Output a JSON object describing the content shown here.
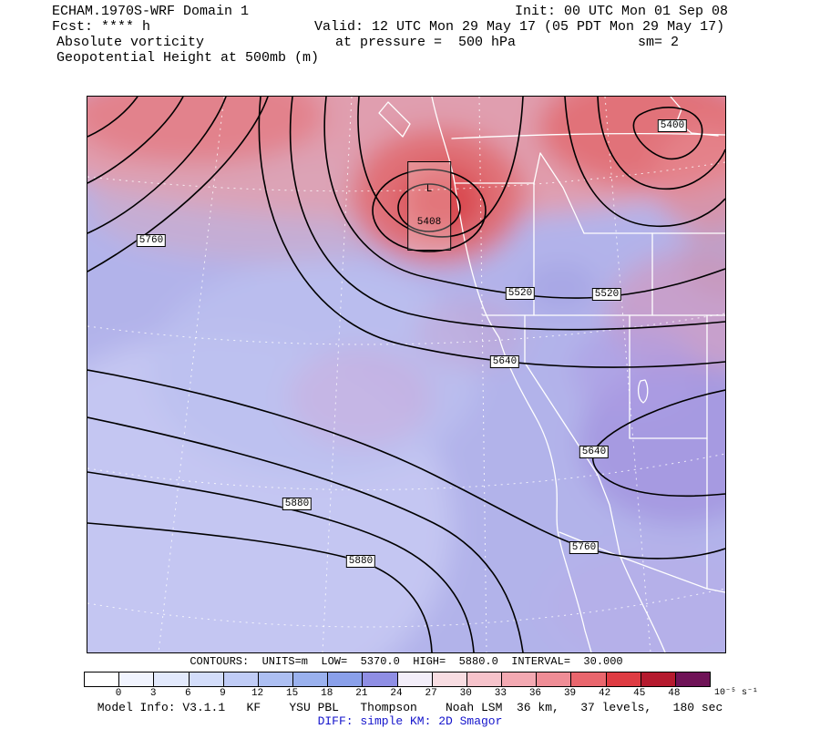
{
  "header": {
    "line1_left": "ECHAM.1970S-WRF Domain 1",
    "line1_right": "Init: 00 UTC Mon 01 Sep 08",
    "line2_left": "Fcst: **** h",
    "line2_mid": "Valid: 12 UTC Mon 29 May 17 (05 PDT Mon 29 May 17)",
    "line3_left": "Absolute vorticity",
    "line3_mid": "at pressure =  500 hPa",
    "line3_right": "sm= 2",
    "line4_left": "Geopotential Height at 500mb (m)"
  },
  "map": {
    "low_marker": {
      "letter": "L",
      "value": "5408"
    },
    "contour_labels": [
      {
        "text": "5400"
      },
      {
        "text": "5760"
      },
      {
        "text": "5520"
      },
      {
        "text": "5520"
      },
      {
        "text": "5640"
      },
      {
        "text": "5640"
      },
      {
        "text": "5880"
      },
      {
        "text": "5880"
      },
      {
        "text": "5760"
      }
    ]
  },
  "footer": {
    "contours_line": "CONTOURS:  UNITS=m  LOW=  5370.0  HIGH=  5880.0  INTERVAL=  30.000",
    "colorbar": {
      "ticks": [
        "0",
        "3",
        "6",
        "9",
        "12",
        "15",
        "18",
        "21",
        "24",
        "27",
        "30",
        "33",
        "36",
        "39",
        "42",
        "45",
        "48"
      ],
      "unit": "10⁻⁵ s⁻¹",
      "colors": [
        "#ffffff",
        "#f1f4fe",
        "#e2e9fc",
        "#d3ddfa",
        "#c0ccf6",
        "#adbff2",
        "#9ab1ee",
        "#8aa0ea",
        "#8f8ee4",
        "#f3eef9",
        "#f8dde2",
        "#f6c3cb",
        "#f3a9b2",
        "#ef8d96",
        "#e9666d",
        "#de3b42",
        "#b51a2e",
        "#6f1357"
      ]
    },
    "model_info": "Model Info: V3.1.1   KF    YSU PBL   Thompson    Noah LSM  36 km,   37 levels,   180 sec",
    "diff_line": "DIFF: simple KM: 2D Smagor",
    "diff_color": "#1414cc"
  },
  "chart_data": {
    "type": "heatmap",
    "title": "ECHAM.1970S-WRF Domain 1 — Absolute vorticity (shaded) and Geopotential Height at 500mb (contours)",
    "init": "00 UTC Mon 01 Sep 08",
    "forecast_hour": "****",
    "valid": "12 UTC Mon 29 May 17 (05 PDT Mon 29 May 17)",
    "pressure_level": "500 hPa",
    "smoothing": "2",
    "shaded_field": {
      "name": "Absolute vorticity",
      "units": "10⁻⁵ s⁻¹",
      "levels": [
        0,
        3,
        6,
        9,
        12,
        15,
        18,
        21,
        24,
        27,
        30,
        33,
        36,
        39,
        42,
        45,
        48
      ],
      "legend_position": "bottom"
    },
    "contour_field": {
      "name": "Geopotential Height at 500mb",
      "units": "m",
      "low": 5370.0,
      "high": 5880.0,
      "interval": 30.0,
      "low_center_value": 5408,
      "labeled_contours": [
        5400,
        5520,
        5520,
        5640,
        5640,
        5760,
        5760,
        5880,
        5880
      ]
    },
    "model_config": "V3.1.1 KF YSU PBL Thompson Noah LSM 36 km, 37 levels, 180 sec, DIFF: simple KM: 2D Smagor"
  }
}
